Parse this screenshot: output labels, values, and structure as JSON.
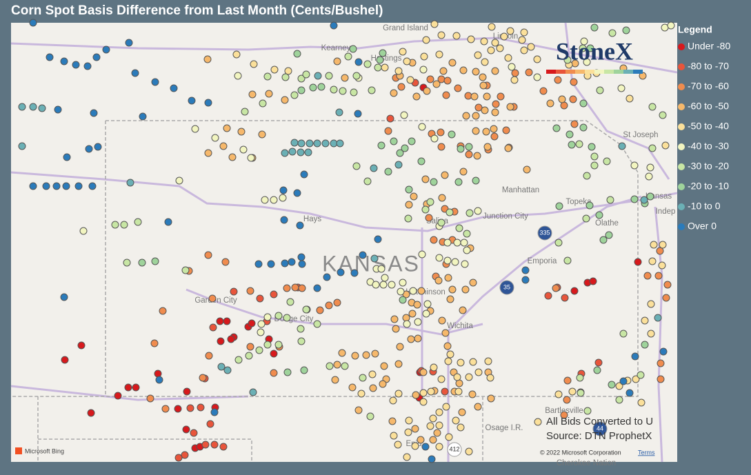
{
  "header": {
    "title": "Corn Spot Basis Difference from Last Month (Cents/Bushel)"
  },
  "legend": {
    "title": "Legend",
    "items": [
      {
        "label": "Under -80",
        "color": "#d7191c"
      },
      {
        "label": "-80 to -70",
        "color": "#e8553b"
      },
      {
        "label": "-70 to -60",
        "color": "#f08c4e"
      },
      {
        "label": "-60 to -50",
        "color": "#f6b86b"
      },
      {
        "label": "-50 to -40",
        "color": "#fbe09a"
      },
      {
        "label": "-40 to -30",
        "color": "#f2f5c0"
      },
      {
        "label": "-30 to -20",
        "color": "#c8e6a4"
      },
      {
        "label": "-20 to -10",
        "color": "#9fd39b"
      },
      {
        "label": "-10 to 0",
        "color": "#6bb0b5"
      },
      {
        "label": "Over 0",
        "color": "#2b7bba"
      }
    ]
  },
  "map": {
    "state_label": "KANSAS",
    "places": [
      "Grand Island",
      "Kearney",
      "Hastings",
      "Lincoln",
      "St Joseph",
      "Manhattan",
      "Topeka",
      "Kansas",
      "Indep",
      "Olathe",
      "Hays",
      "Salina",
      "Junction City",
      "Emporia",
      "Hutchinson",
      "Wichita",
      "Garden City",
      "Dodge City",
      "Bartlesville",
      "Osage I.R.",
      "Enid",
      "Cherokee Nation"
    ],
    "shields": [
      "335",
      "35",
      "44",
      "412"
    ]
  },
  "logo": "StoneX",
  "notes": [
    "All Bids Converted to U",
    "Source: DTN ProphetX"
  ],
  "attribution": {
    "provider": "Microsoft Bing",
    "copyright": "© 2022 Microsoft Corporation",
    "terms": "Terms"
  }
}
